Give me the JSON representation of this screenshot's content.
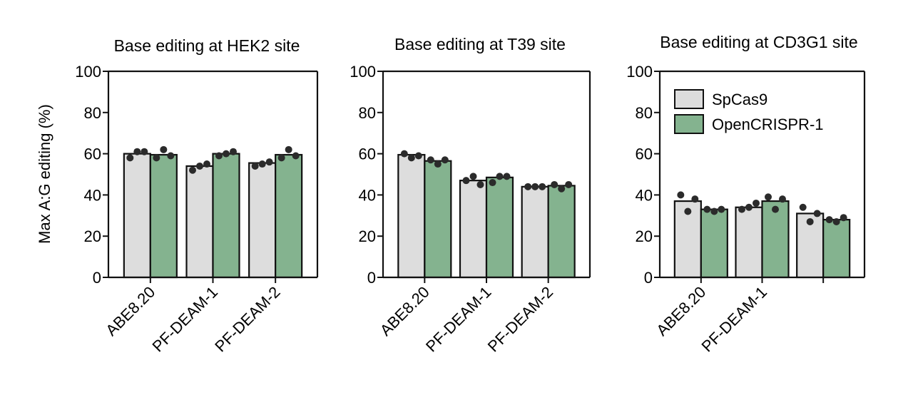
{
  "colors": {
    "spcas9": "#dddddd",
    "opencrispr": "#84b38f",
    "outline": "#111111",
    "dot": "#2b2b2b"
  },
  "ylabel": "Max A:G editing (%)",
  "legend": {
    "placement": "top-left of third panel",
    "items": [
      {
        "label": "SpCas9",
        "color": "#dddddd"
      },
      {
        "label": "OpenCRISPR-1",
        "color": "#84b38f"
      }
    ]
  },
  "chart_data": [
    {
      "type": "bar",
      "title": "Base editing at HEK2 site",
      "ylabel": "Max A:G editing (%)",
      "ylim": [
        0,
        100
      ],
      "yticks": [
        "0",
        "20",
        "40",
        "60",
        "80",
        "100"
      ],
      "categories": [
        "ABE8.20",
        "PF-DEAM-1",
        "PF-DEAM-2"
      ],
      "series": [
        {
          "name": "SpCas9",
          "values": [
            60,
            54,
            55.5
          ],
          "replicates": [
            [
              58,
              61,
              61
            ],
            [
              52,
              54,
              55
            ],
            [
              54,
              55,
              56
            ]
          ]
        },
        {
          "name": "OpenCRISPR-1",
          "values": [
            59.5,
            60,
            59.5
          ],
          "replicates": [
            [
              58,
              62,
              59
            ],
            [
              59,
              60,
              61
            ],
            [
              58,
              62,
              59
            ]
          ]
        }
      ]
    },
    {
      "type": "bar",
      "title": "Base editing at T39 site",
      "ylim": [
        0,
        100
      ],
      "yticks": [
        "0",
        "20",
        "40",
        "60",
        "80",
        "100"
      ],
      "categories": [
        "ABE8.20",
        "PF-DEAM-1",
        "PF-DEAM-2"
      ],
      "series": [
        {
          "name": "SpCas9",
          "values": [
            59.5,
            47,
            44
          ],
          "replicates": [
            [
              60,
              58,
              59
            ],
            [
              47,
              49,
              45
            ],
            [
              44,
              44,
              44
            ]
          ]
        },
        {
          "name": "OpenCRISPR-1",
          "values": [
            56.5,
            48.5,
            44.5
          ],
          "replicates": [
            [
              57,
              55,
              57
            ],
            [
              46,
              49,
              49
            ],
            [
              45,
              43,
              45
            ]
          ]
        }
      ]
    },
    {
      "type": "bar",
      "title": "Base editing at CD3G1 site",
      "ylim": [
        0,
        100
      ],
      "yticks": [
        "0",
        "20",
        "40",
        "60",
        "80",
        "100"
      ],
      "categories": [
        "ABE8.20",
        "PF-DEAM-1",
        ""
      ],
      "series": [
        {
          "name": "SpCas9",
          "values": [
            37,
            34,
            31
          ],
          "replicates": [
            [
              40,
              32,
              38
            ],
            [
              33,
              34,
              36
            ],
            [
              34,
              27,
              31
            ]
          ]
        },
        {
          "name": "OpenCRISPR-1",
          "values": [
            33,
            37,
            28
          ],
          "replicates": [
            [
              33,
              32,
              33
            ],
            [
              39,
              33,
              38
            ],
            [
              28,
              27,
              29
            ]
          ]
        }
      ]
    }
  ]
}
